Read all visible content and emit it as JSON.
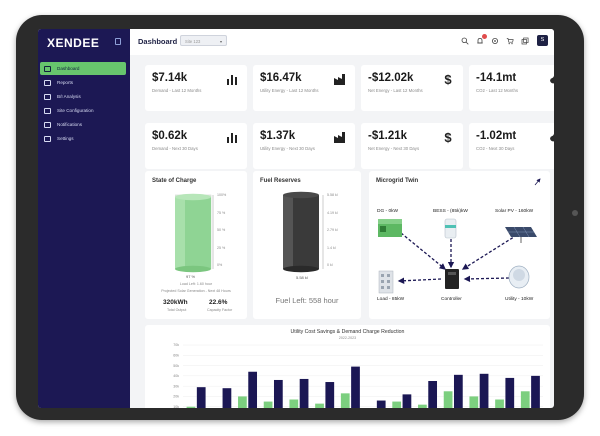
{
  "app": {
    "logo": "XENDEE"
  },
  "sidebar": {
    "items": [
      {
        "label": "Dashboard",
        "icon": "cloud-icon",
        "active": true
      },
      {
        "label": "Reports",
        "icon": "document-icon"
      },
      {
        "label": "B/I Analysis",
        "icon": "grid-icon"
      },
      {
        "label": "Site Configuration",
        "icon": "monitor-icon"
      },
      {
        "label": "Notifications",
        "icon": "bell-icon"
      },
      {
        "label": "Settings",
        "icon": "gear-icon"
      }
    ]
  },
  "header": {
    "title": "Dashboard",
    "site_select": {
      "value": "Site 123"
    },
    "avatar_initial": "S"
  },
  "kpis": [
    {
      "value": "$7.14k",
      "label": "Demand - Last 12 Months",
      "icon": "bar-chart-icon"
    },
    {
      "value": "$16.47k",
      "label": "Utility Energy - Last 12 Months",
      "icon": "factory-icon"
    },
    {
      "value": "-$12.02k",
      "label": "Net Energy - Last 12 Months",
      "icon": "dollar-icon"
    },
    {
      "value": "-14.1mt",
      "label": "CO2 - Last 12 Months",
      "icon": "cloud-icon"
    },
    {
      "value": "$0.62k",
      "label": "Demand - Next 30 Days",
      "icon": "bar-chart-icon"
    },
    {
      "value": "$1.37k",
      "label": "Utility Energy - Next 30 Days",
      "icon": "factory-icon"
    },
    {
      "value": "-$1.21k",
      "label": "Net Energy - Next 30 Days",
      "icon": "dollar-icon"
    },
    {
      "value": "-1.02mt",
      "label": "CO2 - Next 30 Days",
      "icon": "cloud-icon"
    }
  ],
  "state_of_charge": {
    "title": "State of Charge",
    "level_percent": 97,
    "level_label": "97 %",
    "ticks": [
      "100%",
      "75 %",
      "50 %",
      "25 %",
      "0%"
    ],
    "load_left": "Load Left: 1.60 hour",
    "projected": "Projected Solar Generation - Next 48 Hours",
    "total_output": "320kWh",
    "total_output_label": "Total Output",
    "capacity_factor": "22.6%",
    "capacity_factor_label": "Capacity Factor"
  },
  "fuel_reserves": {
    "title": "Fuel Reserves",
    "ticks": [
      "5.58 kl",
      "4.19 kl",
      "2.79 kl",
      "1.4 kl",
      "0 kl"
    ],
    "level_label": "5.58 kl",
    "fuel_left": "Fuel Left: 558 hour"
  },
  "microgrid": {
    "title": "Microgrid Twin",
    "nodes": [
      {
        "name": "dg",
        "label": "DG - 0kW"
      },
      {
        "name": "bess",
        "label": "BESS - (85k)kW"
      },
      {
        "name": "solar",
        "label": "Solar PV - 160kW"
      },
      {
        "name": "load",
        "label": "Load - 85kW"
      },
      {
        "name": "controller",
        "label": "Controller"
      },
      {
        "name": "utility",
        "label": "Utility - 10kW"
      }
    ]
  },
  "chart_data": {
    "type": "bar",
    "title": "Utility Cost Savings & Demand Charge Reduction",
    "subtitle": "2022-2023",
    "yticks": [
      "70k",
      "60k",
      "50k",
      "40k",
      "30k",
      "20k",
      "10k"
    ],
    "series": [
      {
        "values": [
          10,
          6,
          20,
          15,
          17,
          13,
          23,
          5,
          15,
          12,
          25,
          20,
          17,
          25
        ]
      },
      {
        "values": [
          29,
          28,
          44,
          36,
          37,
          34,
          49,
          16,
          22,
          35,
          41,
          42,
          38,
          40
        ]
      }
    ],
    "colors": [
      "#7ccf7f",
      "#1b1754"
    ]
  }
}
